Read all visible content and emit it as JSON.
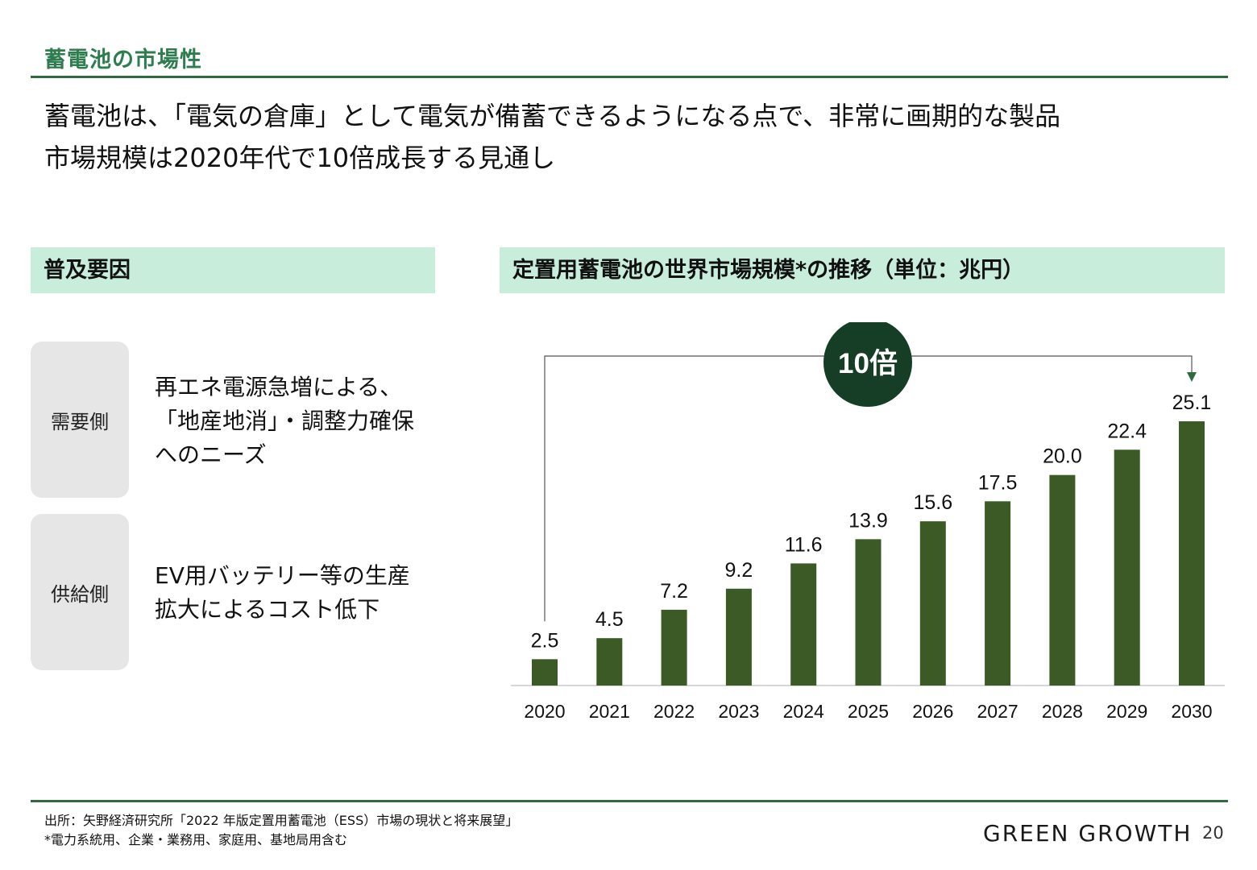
{
  "header": {
    "title": "蓄電池の市場性"
  },
  "headline": {
    "line1": "蓄電池は、「電気の倉庫」として電気が備蓄できるようになる点で、非常に画期的な製品",
    "line2": "市場規模は2020年代で10倍成長する見通し"
  },
  "factors": {
    "heading": "普及要因",
    "demand": {
      "tag": "需要側",
      "lines": [
        "再エネ電源急増による、",
        "「地産地消」・調整力確保",
        "へのニーズ"
      ]
    },
    "supply": {
      "tag": "供給側",
      "lines": [
        "EV用バッテリー等の生産",
        "拡大によるコスト低下"
      ]
    }
  },
  "chart_section": {
    "heading": "定置用蓄電池の世界市場規模*の推移（単位：兆円）"
  },
  "chart_data": {
    "type": "bar",
    "categories": [
      "2020",
      "2021",
      "2022",
      "2023",
      "2024",
      "2025",
      "2026",
      "2027",
      "2028",
      "2029",
      "2030"
    ],
    "values": [
      2.5,
      4.5,
      7.2,
      9.2,
      11.6,
      13.9,
      15.6,
      17.5,
      20.0,
      22.4,
      25.1
    ],
    "value_labels": [
      "2.5",
      "4.5",
      "7.2",
      "9.2",
      "11.6",
      "13.9",
      "15.6",
      "17.5",
      "20.0",
      "22.4",
      "25.1"
    ],
    "title": "定置用蓄電池の世界市場規模*の推移（単位：兆円）",
    "ylim": [
      0,
      25.1
    ],
    "grid": false,
    "bar_color": "#3b5a26",
    "annotation": {
      "text": "10倍",
      "from": "2020",
      "to": "2030",
      "badge_color": "#163d26"
    }
  },
  "footer": {
    "source": "出所：矢野経済研究所「2022 年版定置用蓄電池（ESS）市場の現状と将来展望」",
    "note": "*電力系統用、企業・業務用、家庭用、基地局用含む",
    "brand": "GREEN GROWTH",
    "page": "20"
  }
}
